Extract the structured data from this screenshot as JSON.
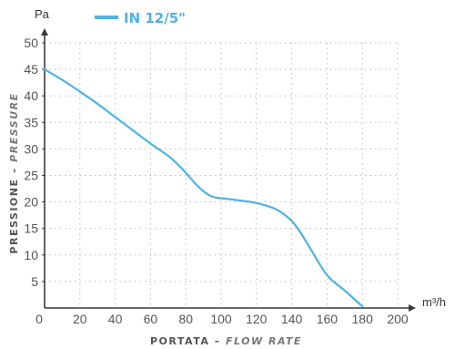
{
  "chart_data": {
    "type": "line",
    "xlabel_main": "PORTATA",
    "xlabel_sep": " – ",
    "xlabel_sub": "FLOW RATE",
    "ylabel_main": "PRESSIONE",
    "ylabel_sep": " – ",
    "ylabel_sub": "PRESSURE",
    "x_unit": "m³/h",
    "y_unit": "Pa",
    "xlim": [
      0,
      200
    ],
    "ylim": [
      0,
      50
    ],
    "x_ticks": [
      "0",
      "20",
      "40",
      "60",
      "80",
      "100",
      "120",
      "140",
      "160",
      "180",
      "200"
    ],
    "y_ticks": [
      "5",
      "10",
      "15",
      "20",
      "25",
      "30",
      "35",
      "40",
      "45",
      "50"
    ],
    "grid": true,
    "legend_position": "top",
    "series": [
      {
        "name": "IN 12/5\"",
        "color": "#4fb3e3",
        "x": [
          0,
          10,
          20,
          30,
          40,
          50,
          60,
          70,
          75,
          80,
          85,
          90,
          95,
          100,
          110,
          120,
          130,
          135,
          140,
          145,
          150,
          160,
          170,
          180
        ],
        "y": [
          45,
          43,
          40.8,
          38.5,
          36,
          33.5,
          31,
          28.7,
          27.2,
          25.5,
          23.6,
          22,
          21,
          20.7,
          20.3,
          19.8,
          18.8,
          17.8,
          16.4,
          14.2,
          11.5,
          6.2,
          3.3,
          0.3
        ]
      }
    ]
  }
}
